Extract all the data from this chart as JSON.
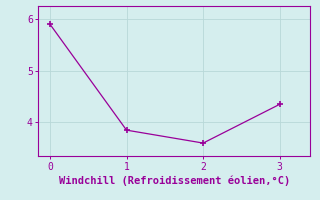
{
  "x": [
    0,
    1,
    2,
    3
  ],
  "y": [
    5.9,
    3.85,
    3.6,
    4.35
  ],
  "line_color": "#990099",
  "marker": "+",
  "marker_size": 4,
  "marker_linewidth": 1.2,
  "background_color": "#d5eeee",
  "xlabel": "Windchill (Refroidissement éolien,°C)",
  "xlabel_color": "#990099",
  "xlabel_fontsize": 7.5,
  "grid_color": "#b8d8d8",
  "tick_color": "#990099",
  "spine_color": "#990099",
  "spine_linewidth": 0.8,
  "xlim": [
    -0.15,
    3.4
  ],
  "ylim": [
    3.35,
    6.25
  ],
  "xticks": [
    0,
    1,
    2,
    3
  ],
  "yticks": [
    4,
    5,
    6
  ],
  "tick_labelsize": 7,
  "linewidth": 0.9
}
